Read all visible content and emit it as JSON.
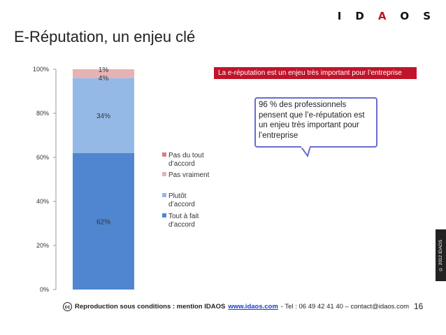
{
  "header": {
    "logo_letters": [
      "I",
      "D",
      "A",
      "O",
      "S"
    ],
    "title": "E-Réputation, un enjeu clé"
  },
  "banner": {
    "text": "La e-réputation est un enjeu très important pour l’entreprise"
  },
  "callout": {
    "text": "96 % des professionnels pensent que l’e-réputation est un enjeu très important pour l’entreprise"
  },
  "side_label": "© 2012 IDAOS",
  "footer": {
    "cc_icon": "cc",
    "prefix": "Reproduction sous conditions : mention IDAOS",
    "link": "www.idaos.com",
    "suffix": " - Tel : 06 49 42 41 40 – contact@idaos.com",
    "page_number": "16"
  },
  "colors": {
    "tout_a_fait": "#4f86cf",
    "plutot": "#94b9e6",
    "pas_vraiment": "#e5b3b4",
    "pas_du_tout": "#d97b80",
    "accent_red": "#c0142a",
    "callout_border": "#6a6bd1"
  },
  "chart_data": {
    "type": "bar",
    "stacked": true,
    "categories": [
      ""
    ],
    "series": [
      {
        "name": "Tout à fait d’accord",
        "values": [
          62
        ],
        "label": "62%",
        "color": "#4f86cf"
      },
      {
        "name": "Plutôt d’accord",
        "values": [
          34
        ],
        "label": "34%",
        "color": "#94b9e6"
      },
      {
        "name": "Pas vraiment",
        "values": [
          4
        ],
        "label": "4%",
        "color": "#e5b3b4"
      },
      {
        "name": "Pas du tout d’accord",
        "values": [
          1
        ],
        "label": "1%",
        "color": "#d97b80"
      }
    ],
    "ylim": [
      0,
      100
    ],
    "yticks": [
      {
        "value": 0,
        "label": "0%"
      },
      {
        "value": 20,
        "label": "20%"
      },
      {
        "value": 40,
        "label": "40%"
      },
      {
        "value": 60,
        "label": "60%"
      },
      {
        "value": 80,
        "label": "80%"
      },
      {
        "value": 100,
        "label": "100%"
      }
    ],
    "legend_order": [
      "Pas du tout d’accord",
      "Pas vraiment",
      "Plutôt d’accord",
      "Tout à fait d’accord"
    ],
    "legend_position": "right",
    "grid": false
  }
}
